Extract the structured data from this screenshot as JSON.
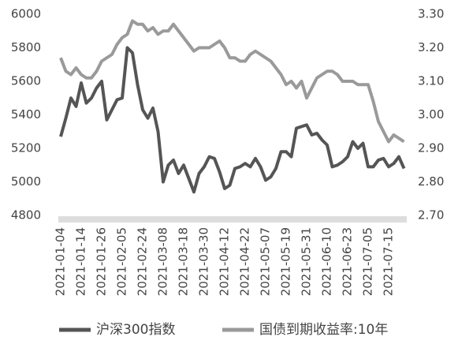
{
  "chart_data": {
    "type": "line",
    "categories": [
      "2021-01-04",
      null,
      null,
      null,
      "2021-01-14",
      null,
      null,
      null,
      "2021-01-26",
      null,
      null,
      null,
      "2021-02-05",
      null,
      null,
      null,
      "2021-02-24",
      null,
      null,
      null,
      "2021-03-08",
      null,
      null,
      null,
      "2021-03-18",
      null,
      null,
      null,
      "2021-03-30",
      null,
      null,
      null,
      "2021-04-12",
      null,
      null,
      null,
      "2021-04-22",
      null,
      null,
      null,
      "2021-05-07",
      null,
      null,
      null,
      "2021-05-19",
      null,
      null,
      null,
      "2021-05-31",
      null,
      null,
      null,
      "2021-06-10",
      null,
      null,
      null,
      "2021-06-23",
      null,
      null,
      null,
      "2021-07-05",
      null,
      null,
      null,
      "2021-07-15",
      null,
      null,
      null
    ],
    "series": [
      {
        "name": "沪深300指数",
        "color": "#555555",
        "axis": "y",
        "values": [
          5270,
          5380,
          5500,
          5450,
          5590,
          5470,
          5500,
          5560,
          5600,
          5370,
          5430,
          5490,
          5500,
          5800,
          5770,
          5580,
          5430,
          5380,
          5440,
          5300,
          5000,
          5100,
          5130,
          5050,
          5100,
          5020,
          4940,
          5050,
          5090,
          5150,
          5140,
          5060,
          4960,
          4980,
          5080,
          5090,
          5110,
          5090,
          5140,
          5090,
          5010,
          5030,
          5080,
          5180,
          5180,
          5150,
          5320,
          5330,
          5340,
          5280,
          5290,
          5250,
          5220,
          5090,
          5100,
          5120,
          5150,
          5240,
          5200,
          5230,
          5090,
          5090,
          5130,
          5140,
          5090,
          5110,
          5150,
          5080
        ]
      },
      {
        "name": "国债到期收益率:10年",
        "color": "#9a9a9a",
        "axis": "y2",
        "values": [
          3.17,
          3.13,
          3.12,
          3.14,
          3.12,
          3.11,
          3.11,
          3.13,
          3.16,
          3.17,
          3.18,
          3.21,
          3.23,
          3.24,
          3.28,
          3.27,
          3.27,
          3.25,
          3.26,
          3.24,
          3.25,
          3.25,
          3.27,
          3.25,
          3.23,
          3.21,
          3.19,
          3.2,
          3.2,
          3.2,
          3.21,
          3.22,
          3.2,
          3.17,
          3.17,
          3.16,
          3.16,
          3.18,
          3.19,
          3.18,
          3.17,
          3.16,
          3.14,
          3.12,
          3.09,
          3.1,
          3.08,
          3.1,
          3.05,
          3.08,
          3.11,
          3.12,
          3.13,
          3.13,
          3.12,
          3.1,
          3.1,
          3.1,
          3.09,
          3.09,
          3.09,
          3.04,
          2.98,
          2.95,
          2.92,
          2.94,
          2.93,
          2.92
        ]
      }
    ],
    "ylim": [
      4800,
      6000
    ],
    "yticks": [
      4800,
      5000,
      5200,
      5400,
      5600,
      5800,
      6000
    ],
    "y2lim": [
      2.7,
      3.3
    ],
    "y2ticks": [
      {
        "value": 2.7,
        "label": "2.70"
      },
      {
        "value": 2.8,
        "label": "2.80"
      },
      {
        "value": 2.9,
        "label": "2.90"
      },
      {
        "value": 3.0,
        "label": "3.00"
      },
      {
        "value": 3.1,
        "label": "3.10"
      },
      {
        "value": 3.2,
        "label": "3.20"
      },
      {
        "value": 3.3,
        "label": "3.30"
      }
    ]
  }
}
